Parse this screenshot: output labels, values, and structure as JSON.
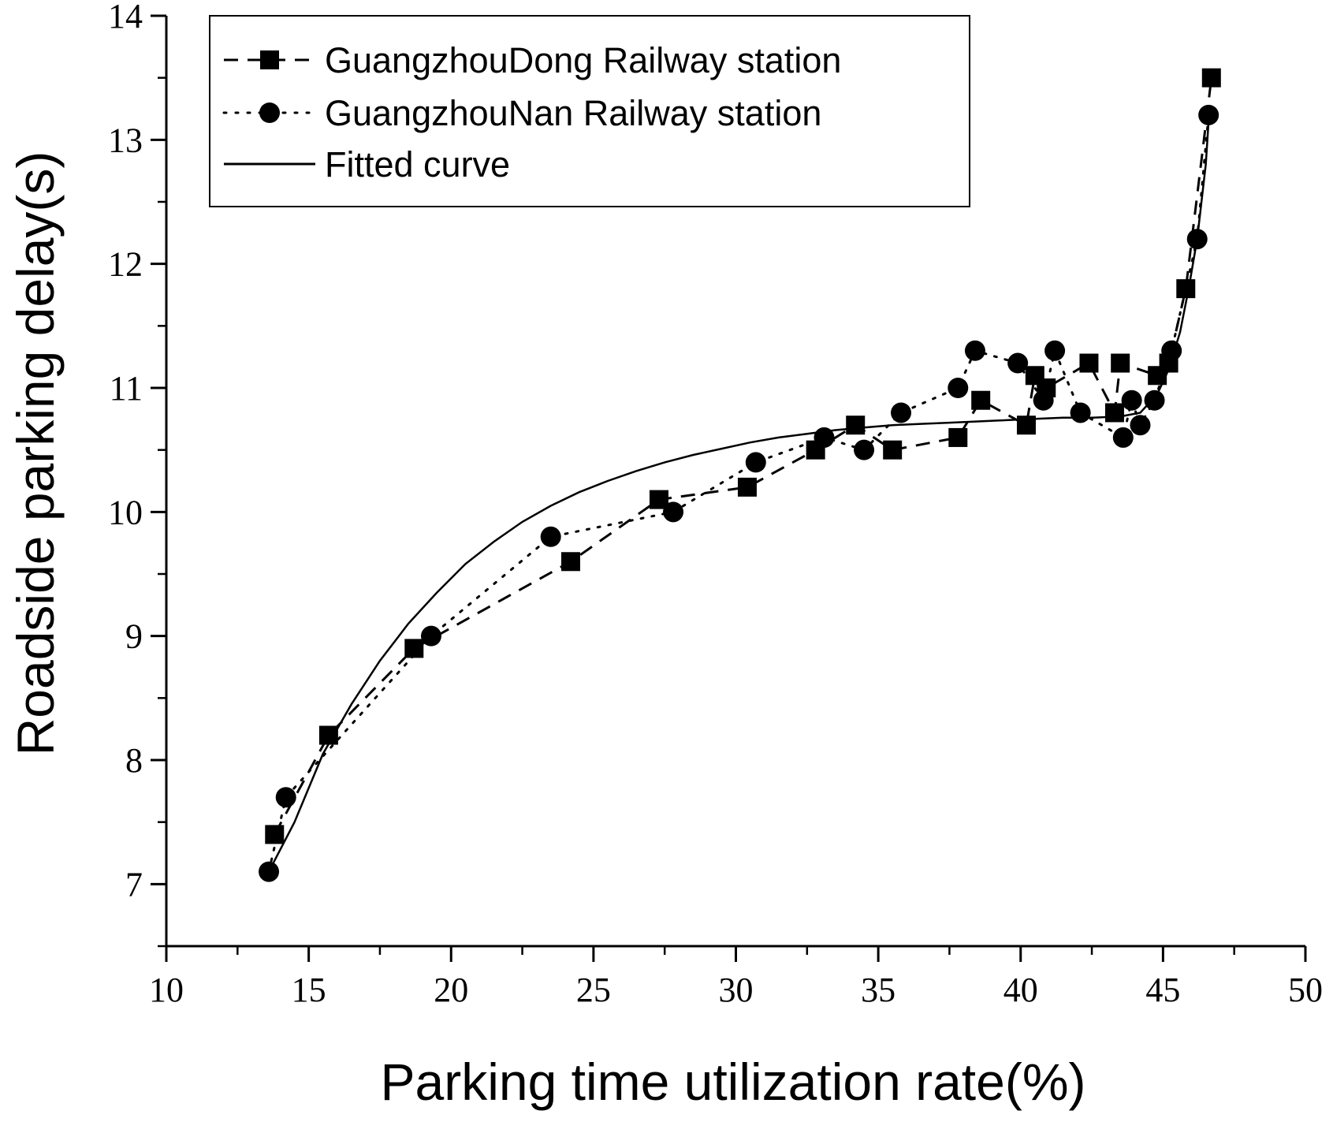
{
  "chart_data": {
    "type": "scatter",
    "xlabel": "Parking time utilization rate(%)",
    "ylabel": "Roadside parking delay(s)",
    "xlim": [
      10,
      50
    ],
    "ylim": [
      6.5,
      14
    ],
    "x_ticks": [
      10,
      15,
      20,
      25,
      30,
      35,
      40,
      45,
      50
    ],
    "y_ticks": [
      7,
      8,
      9,
      10,
      11,
      12,
      13,
      14
    ],
    "grid": false,
    "legend_position": "top-left",
    "series": [
      {
        "name": "GuangzhouDong Railway station",
        "marker": "square",
        "line": "dashed",
        "x": [
          13.8,
          15.7,
          18.7,
          24.2,
          27.3,
          30.4,
          32.8,
          34.2,
          35.5,
          37.8,
          38.6,
          40.2,
          40.5,
          40.9,
          42.4,
          43.3,
          43.5,
          44.8,
          45.2,
          45.8,
          46.7
        ],
        "y": [
          7.4,
          8.2,
          8.9,
          9.6,
          10.1,
          10.2,
          10.5,
          10.7,
          10.5,
          10.6,
          10.9,
          10.7,
          11.1,
          11.0,
          11.2,
          10.8,
          11.2,
          11.1,
          11.2,
          11.8,
          13.5
        ]
      },
      {
        "name": "GuangzhouNan Railway station",
        "marker": "circle",
        "line": "dotted",
        "x": [
          13.6,
          14.2,
          19.3,
          23.5,
          27.8,
          30.7,
          33.1,
          34.5,
          35.8,
          37.8,
          38.4,
          39.9,
          40.8,
          41.2,
          42.1,
          43.6,
          43.9,
          44.2,
          44.7,
          45.3,
          46.2,
          46.6
        ],
        "y": [
          7.1,
          7.7,
          9.0,
          9.8,
          10.0,
          10.4,
          10.6,
          10.5,
          10.8,
          11.0,
          11.3,
          11.2,
          10.9,
          11.3,
          10.8,
          10.6,
          10.9,
          10.7,
          10.9,
          11.3,
          12.2,
          13.2
        ]
      },
      {
        "name": "Fitted curve",
        "marker": "none",
        "line": "solid",
        "x": [
          13.6,
          14.5,
          15.5,
          16.5,
          17.5,
          18.5,
          19.5,
          20.5,
          21.5,
          22.5,
          23.5,
          24.5,
          25.5,
          26.5,
          27.5,
          28.5,
          29.5,
          30.5,
          31.5,
          32.5,
          33.5,
          34.5,
          35.5,
          36.5,
          37.5,
          38.5,
          39.5,
          40.5,
          41.5,
          42.5,
          43.5,
          44.2,
          44.8,
          45.2,
          45.6,
          45.9,
          46.2,
          46.5,
          46.6
        ],
        "y": [
          7.1,
          7.5,
          8.05,
          8.45,
          8.8,
          9.1,
          9.35,
          9.58,
          9.76,
          9.92,
          10.05,
          10.16,
          10.25,
          10.33,
          10.4,
          10.46,
          10.51,
          10.56,
          10.6,
          10.63,
          10.66,
          10.68,
          10.7,
          10.71,
          10.72,
          10.73,
          10.74,
          10.75,
          10.76,
          10.76,
          10.77,
          10.8,
          10.95,
          11.15,
          11.45,
          11.8,
          12.2,
          12.8,
          13.15
        ]
      }
    ]
  }
}
